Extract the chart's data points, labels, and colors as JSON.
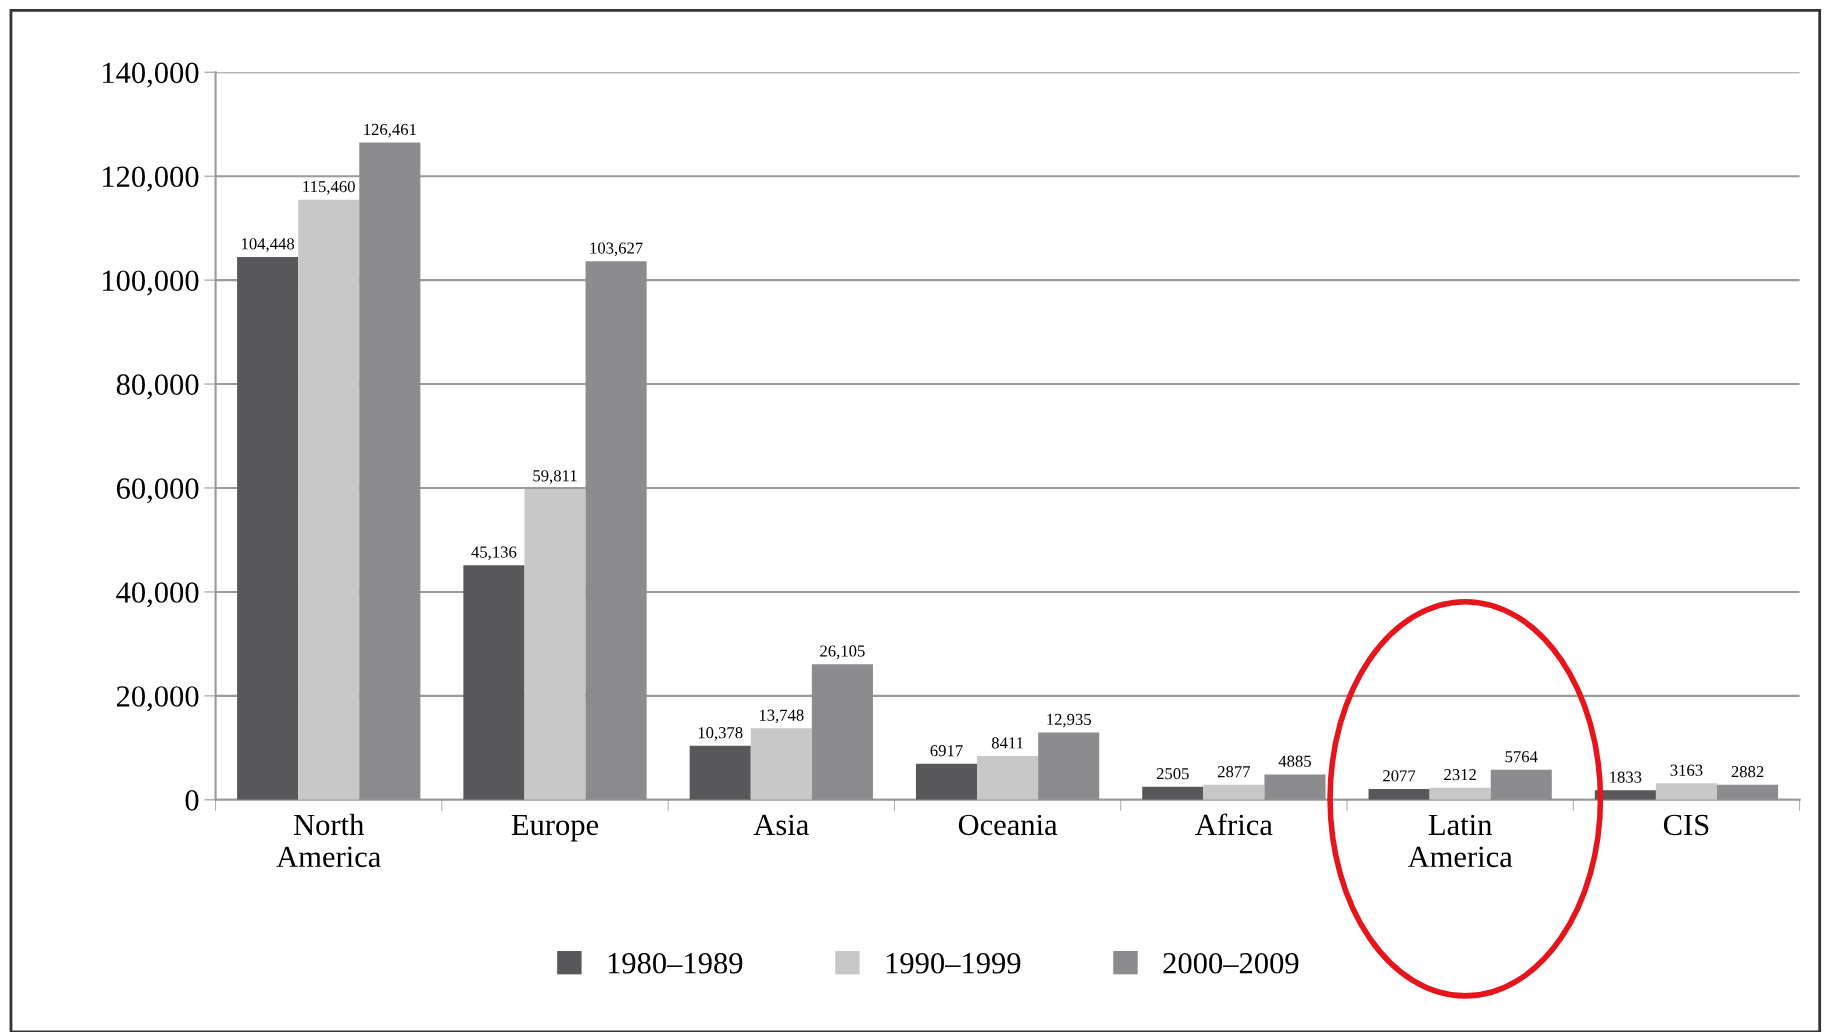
{
  "chart_data": {
    "type": "bar",
    "categories": [
      "North\nAmerica",
      "Europe",
      "Asia",
      "Oceania",
      "Africa",
      "Latin\nAmerica",
      "CIS"
    ],
    "series": [
      {
        "name": "1980–1989",
        "color": "#58585a",
        "values": [
          104448,
          45136,
          10378,
          6917,
          2505,
          2077,
          1833
        ],
        "value_labels": [
          "104,448",
          "45,136",
          "10,378",
          "6917",
          "2505",
          "2077",
          "1833"
        ]
      },
      {
        "name": "1990–1999",
        "color": "#c8c8c8",
        "values": [
          115460,
          59811,
          13748,
          8411,
          2877,
          2312,
          3163
        ],
        "value_labels": [
          "115,460",
          "59,811",
          "13,748",
          "8411",
          "2877",
          "2312",
          "3163"
        ]
      },
      {
        "name": "2000–2009",
        "color": "#8c8c8e",
        "values": [
          126461,
          103627,
          26105,
          12935,
          4885,
          5764,
          2882
        ],
        "value_labels": [
          "126,461",
          "103,627",
          "26,105",
          "12,935",
          "4885",
          "5764",
          "2882"
        ]
      }
    ],
    "ylim": [
      0,
      140000
    ],
    "yticks": [
      {
        "value": 0,
        "label": "0"
      },
      {
        "value": 20000,
        "label": "20,000"
      },
      {
        "value": 40000,
        "label": "40,000"
      },
      {
        "value": 60000,
        "label": "60,000"
      },
      {
        "value": 80000,
        "label": "80,000"
      },
      {
        "value": 100000,
        "label": "100,000"
      },
      {
        "value": 120000,
        "label": "120,000"
      },
      {
        "value": 140000,
        "label": "140,000"
      }
    ],
    "grid": "y",
    "legend": "bottom"
  }
}
